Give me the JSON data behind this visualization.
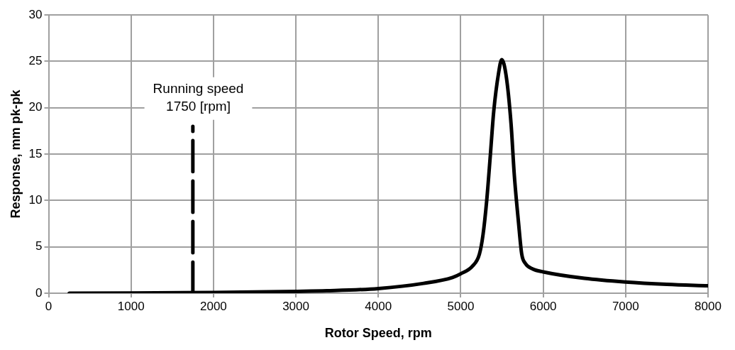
{
  "chart_data": {
    "type": "line",
    "xlabel": "Rotor Speed, rpm",
    "ylabel": "Response, mm pk-pk",
    "xlim": [
      0,
      8000
    ],
    "xticks": [
      0,
      1000,
      2000,
      3000,
      4000,
      5000,
      6000,
      7000,
      8000
    ],
    "ylim": [
      0,
      30
    ],
    "yticks": [
      0,
      5,
      10,
      15,
      20,
      25,
      30
    ],
    "grid": true,
    "marker": "none",
    "series": [
      {
        "color": "#000000",
        "line_style": "solid",
        "x": [
          250,
          1000,
          2000,
          3000,
          3374,
          4000,
          4550,
          4900,
          5000,
          5140,
          5226,
          5270,
          5315,
          5360,
          5400,
          5460,
          5497,
          5550,
          5610,
          5650,
          5700,
          5740,
          5785,
          5875,
          6000,
          6500,
          7000,
          7500,
          8000
        ],
        "values": [
          0,
          0.02,
          0.08,
          0.2,
          0.26,
          0.5,
          1.06,
          1.7,
          2.1,
          2.9,
          4.2,
          6.3,
          10,
          15,
          19.6,
          23.8,
          25.2,
          23.5,
          18.3,
          12.7,
          7.7,
          4.2,
          3.2,
          2.6,
          2.3,
          1.6,
          1.2,
          0.95,
          0.8
        ]
      },
      {
        "color": "#000000",
        "line_style": "dashed",
        "x": [
          1750,
          1750
        ],
        "values": [
          0,
          18
        ]
      }
    ],
    "annotations": [
      "Running speed\n1750 [rpm]"
    ]
  }
}
